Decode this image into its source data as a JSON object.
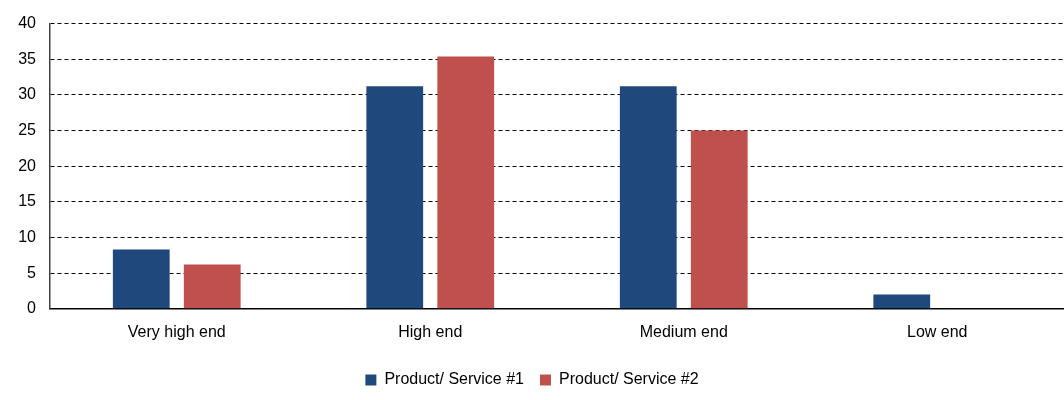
{
  "chart_data": {
    "type": "bar",
    "categories": [
      "Very high end",
      "High end",
      "Medium end",
      "Low end"
    ],
    "series": [
      {
        "name": "Product/ Service #1",
        "color": "#1f497d",
        "values": [
          8.3,
          31.2,
          31.2,
          2.0
        ]
      },
      {
        "name": "Product/ Service #2",
        "color": "#c0504d",
        "values": [
          6.2,
          35.4,
          25.0,
          0
        ]
      }
    ],
    "ylim": [
      0,
      40
    ],
    "yticks": [
      0,
      5,
      10,
      15,
      20,
      25,
      30,
      35,
      40
    ],
    "grid": "y",
    "legend": "bottom"
  }
}
